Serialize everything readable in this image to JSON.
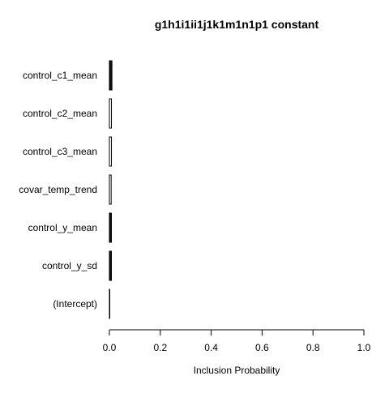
{
  "chart_data": {
    "type": "bar",
    "orientation": "horizontal",
    "title": "g1h1i1ii1j1k1m1n1p1 constant",
    "xlabel": "Inclusion Probability",
    "ylabel": "",
    "xlim": [
      0,
      1
    ],
    "x_ticks": [
      0,
      0.2,
      0.4,
      0.6,
      0.8,
      1
    ],
    "x_tick_labels": [
      "0.0",
      "0.2",
      "0.4",
      "0.6",
      "0.8",
      "1.0"
    ],
    "categories": [
      "control_c1_mean",
      "control_c2_mean",
      "control_c3_mean",
      "covar_temp_trend",
      "control_y_mean",
      "control_y_sd",
      "(Intercept)"
    ],
    "values": [
      0.01,
      0.008,
      0.008,
      0.007,
      0.008,
      0.008,
      0.0
    ],
    "bar_fill_colors": [
      "#111111",
      "#ffffff",
      "#ffffff",
      "#ffffff",
      "#111111",
      "#111111",
      "#111111"
    ],
    "bar_border_color": "#000000",
    "axis_color": "#000000",
    "grid": false,
    "legend": "none"
  }
}
